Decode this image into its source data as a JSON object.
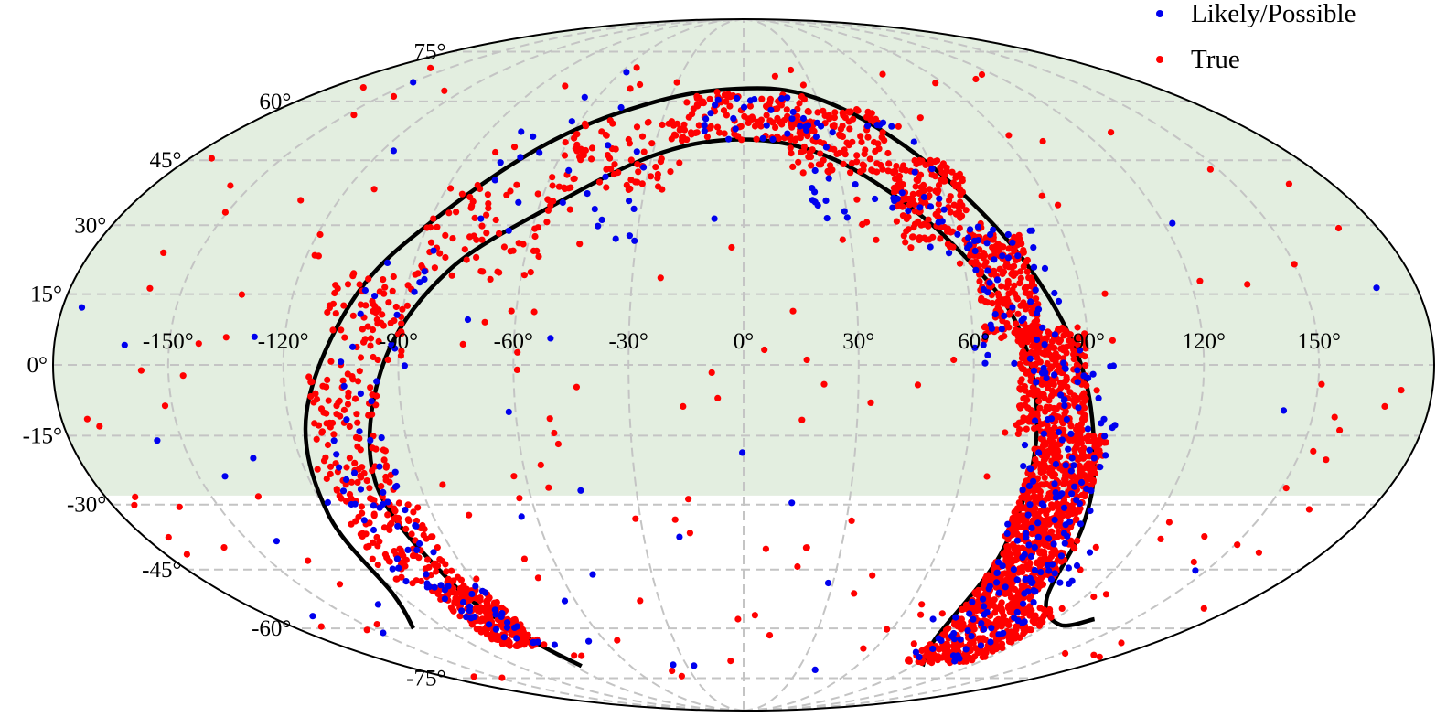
{
  "chart_data": {
    "type": "scatter",
    "projection": "mollweide",
    "title": "",
    "xlabel": "",
    "ylabel": "",
    "x_ticks": [
      -150,
      -120,
      -90,
      -60,
      -30,
      0,
      30,
      60,
      90,
      120,
      150
    ],
    "y_ticks": [
      -75,
      -60,
      -45,
      -30,
      -15,
      0,
      15,
      30,
      45,
      60,
      75
    ],
    "x_tick_labels": [
      "-150°",
      "-120°",
      "-90°",
      "-60°",
      "-30°",
      "0°",
      "30°",
      "60°",
      "90°",
      "120°",
      "150°"
    ],
    "y_tick_labels": [
      "-75°",
      "-60°",
      "-45°",
      "-30°",
      "-15°",
      "0°",
      "15°",
      "30°",
      "45°",
      "60°",
      "75°"
    ],
    "grid": true,
    "shaded_region": {
      "lat_min": -28,
      "lat_max": 90,
      "color": "#e3eee0"
    },
    "legend": {
      "position": "top-right",
      "entries": [
        {
          "label": "Likely/Possible",
          "color": "#0000ee"
        },
        {
          "label": "True",
          "color": "#ff0000"
        }
      ]
    },
    "boundary_curves": [
      {
        "name": "outer",
        "points": [
          [
            -133,
            -60
          ],
          [
            -122,
            -51
          ],
          [
            -120,
            -32
          ],
          [
            -115,
            -10
          ],
          [
            -103,
            15
          ],
          [
            -87,
            33
          ],
          [
            -65,
            50
          ],
          [
            -35,
            60
          ],
          [
            -3,
            63.5
          ],
          [
            25,
            62
          ],
          [
            48,
            53
          ],
          [
            65,
            38
          ],
          [
            78,
            20
          ],
          [
            88,
            0
          ],
          [
            95,
            -20
          ],
          [
            100,
            -35
          ],
          [
            107,
            -52
          ],
          [
            125,
            -59
          ],
          [
            135,
            -57.5
          ]
        ]
      },
      {
        "name": "inner",
        "points": [
          [
            -86,
            -71
          ],
          [
            -92,
            -62
          ],
          [
            -98,
            -48
          ],
          [
            -102,
            -25
          ],
          [
            -94,
            0
          ],
          [
            -80,
            20
          ],
          [
            -55,
            35
          ],
          [
            -30,
            46
          ],
          [
            -5,
            50
          ],
          [
            20,
            48
          ],
          [
            40,
            40
          ],
          [
            58,
            26
          ],
          [
            72,
            8
          ],
          [
            78,
            -15
          ],
          [
            80,
            -40
          ],
          [
            82,
            -63
          ],
          [
            95,
            -71
          ]
        ]
      }
    ],
    "series": [
      {
        "name": "True",
        "color": "#ff0000",
        "clusters": [
          {
            "lon": [
              -108,
              -88
            ],
            "lat": [
              -65,
              -50
            ],
            "n": 230
          },
          {
            "lon": [
              -117,
              -93
            ],
            "lat": [
              -50,
              -30
            ],
            "n": 110
          },
          {
            "lon": [
              -114,
              -96
            ],
            "lat": [
              -30,
              0
            ],
            "n": 110
          },
          {
            "lon": [
              -110,
              -88
            ],
            "lat": [
              0,
              20
            ],
            "n": 70
          },
          {
            "lon": [
              -90,
              -55
            ],
            "lat": [
              18,
              40
            ],
            "n": 70
          },
          {
            "lon": [
              -60,
              -20
            ],
            "lat": [
              38,
              55
            ],
            "n": 80
          },
          {
            "lon": [
              -25,
              25
            ],
            "lat": [
              50,
              63
            ],
            "n": 120
          },
          {
            "lon": [
              15,
              50
            ],
            "lat": [
              42,
              58
            ],
            "n": 130
          },
          {
            "lon": [
              45,
              68
            ],
            "lat": [
              25,
              45
            ],
            "n": 170
          },
          {
            "lon": [
              62,
              78
            ],
            "lat": [
              5,
              28
            ],
            "n": 220
          },
          {
            "lon": [
              72,
              90
            ],
            "lat": [
              -15,
              8
            ],
            "n": 320
          },
          {
            "lon": [
              78,
              97
            ],
            "lat": [
              -38,
              -15
            ],
            "n": 460
          },
          {
            "lon": [
              80,
              102
            ],
            "lat": [
              -55,
              -38
            ],
            "n": 300
          },
          {
            "lon": [
              82,
              118
            ],
            "lat": [
              -70,
              -54
            ],
            "n": 270
          },
          {
            "lon": [
              -175,
              175
            ],
            "lat": [
              -75,
              70
            ],
            "n": 180
          }
        ]
      },
      {
        "name": "Likely/Possible",
        "color": "#0000ee",
        "clusters": [
          {
            "lon": [
              -110,
              -88
            ],
            "lat": [
              -65,
              -48
            ],
            "n": 35
          },
          {
            "lon": [
              -115,
              -95
            ],
            "lat": [
              -48,
              -15
            ],
            "n": 35
          },
          {
            "lon": [
              -110,
              -85
            ],
            "lat": [
              -15,
              25
            ],
            "n": 20
          },
          {
            "lon": [
              -80,
              -30
            ],
            "lat": [
              25,
              55
            ],
            "n": 25
          },
          {
            "lon": [
              -15,
              25
            ],
            "lat": [
              50,
              62
            ],
            "n": 25
          },
          {
            "lon": [
              20,
              60
            ],
            "lat": [
              30,
              55
            ],
            "n": 40
          },
          {
            "lon": [
              60,
              85
            ],
            "lat": [
              0,
              30
            ],
            "n": 55
          },
          {
            "lon": [
              75,
              100
            ],
            "lat": [
              -40,
              0
            ],
            "n": 90
          },
          {
            "lon": [
              80,
              110
            ],
            "lat": [
              -70,
              -40
            ],
            "n": 75
          },
          {
            "lon": [
              -175,
              175
            ],
            "lat": [
              -75,
              70
            ],
            "n": 45
          }
        ]
      }
    ]
  }
}
